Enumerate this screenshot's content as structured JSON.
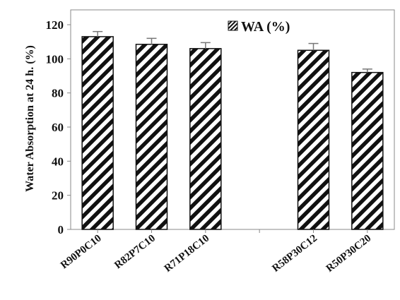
{
  "chart_data": {
    "type": "bar",
    "categories": [
      "R90P0C10",
      "R82P7C10",
      "R71P18C10",
      "",
      "R58P30C12",
      "R50P30C20"
    ],
    "values": [
      113,
      108.5,
      106,
      null,
      105,
      92
    ],
    "errors": [
      3,
      3.5,
      3.5,
      null,
      4,
      2
    ],
    "ylabel": "Water Absorption at 24 h. (%)",
    "xlabel": "",
    "ylim": [
      0,
      120
    ],
    "yticks": [
      0,
      20,
      40,
      60,
      80,
      100,
      120
    ],
    "legend": {
      "label": "WA (%)",
      "placement": "top-right"
    },
    "grid": false,
    "bar_fill": "diagonal-hatch",
    "bar_color": "#111111"
  }
}
